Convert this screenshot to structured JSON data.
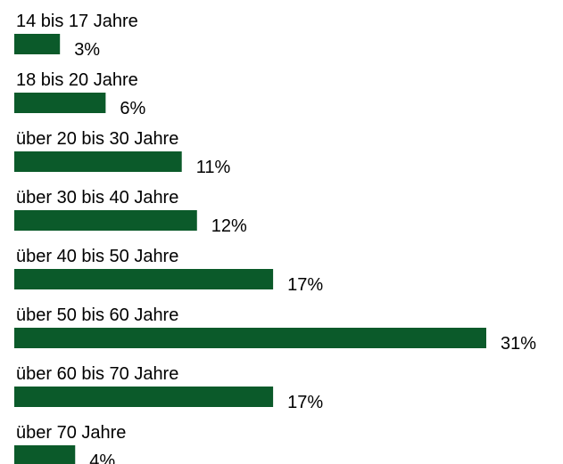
{
  "chart_data": {
    "type": "bar",
    "orientation": "horizontal",
    "categories": [
      "14 bis 17 Jahre",
      "18 bis 20 Jahre",
      "über 20 bis 30 Jahre",
      "über 30 bis 40 Jahre",
      "über 40 bis 50 Jahre",
      "über 50 bis 60 Jahre",
      "über 60 bis 70 Jahre",
      "über 70 Jahre"
    ],
    "values": [
      3,
      6,
      11,
      12,
      17,
      31,
      17,
      4
    ],
    "value_labels": [
      "3%",
      "6%",
      "11%",
      "12%",
      "17%",
      "31%",
      "17%",
      "4%"
    ],
    "color": "#0b5a2a"
  }
}
